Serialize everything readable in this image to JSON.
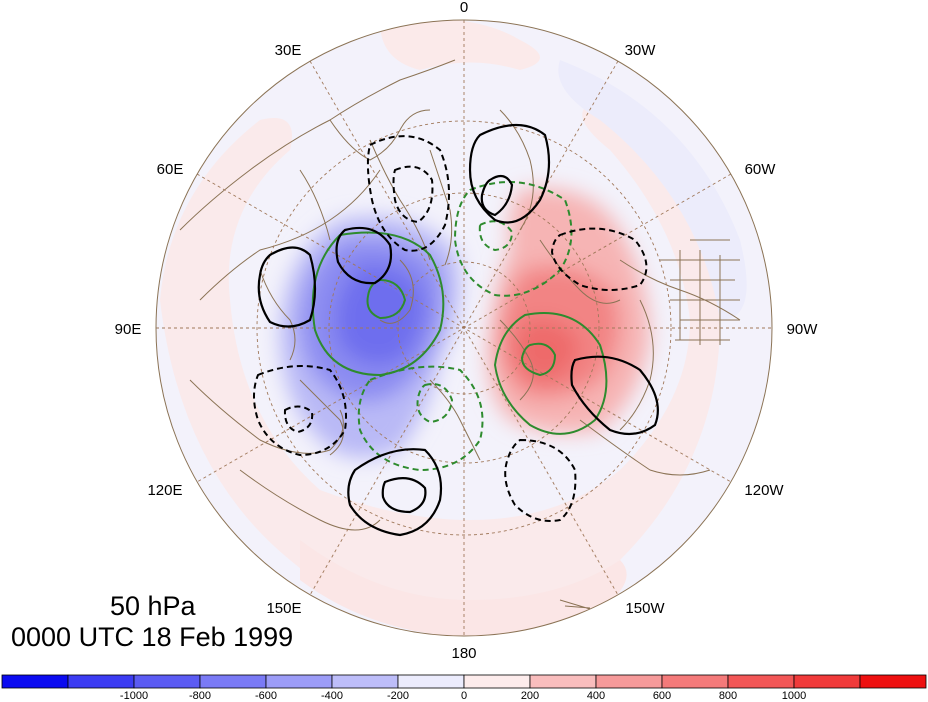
{
  "figure": {
    "level": "50 hPa",
    "valid_time": "0000 UTC 18 Feb 1999"
  },
  "projection": {
    "type": "north-polar-stereographic",
    "longitude_labels": [
      "0",
      "30W",
      "60W",
      "90W",
      "120W",
      "150W",
      "180",
      "150E",
      "120E",
      "90E",
      "60E",
      "30E"
    ]
  },
  "colorbar": {
    "tick_labels": [
      "-1000",
      "-800",
      "-600",
      "-400",
      "-200",
      "0",
      "200",
      "400",
      "600",
      "800",
      "1000"
    ],
    "colors": [
      "#0b0bf0",
      "#3c3cf2",
      "#5b5bf3",
      "#7a7af5",
      "#9c9cf7",
      "#bdbdf9",
      "#ececfd",
      "#fdecec",
      "#f9bdbd",
      "#f69a9a",
      "#f47a7a",
      "#f25656",
      "#f03a3a",
      "#ee1010"
    ]
  },
  "colors": {
    "negative_shading": "#7a7af5",
    "positive_shading": "#f47a7a",
    "solid_contour": "#000000",
    "green_contour": "#2e8b2e",
    "coastline": "#8b7355",
    "graticule": "#a0785a"
  }
}
